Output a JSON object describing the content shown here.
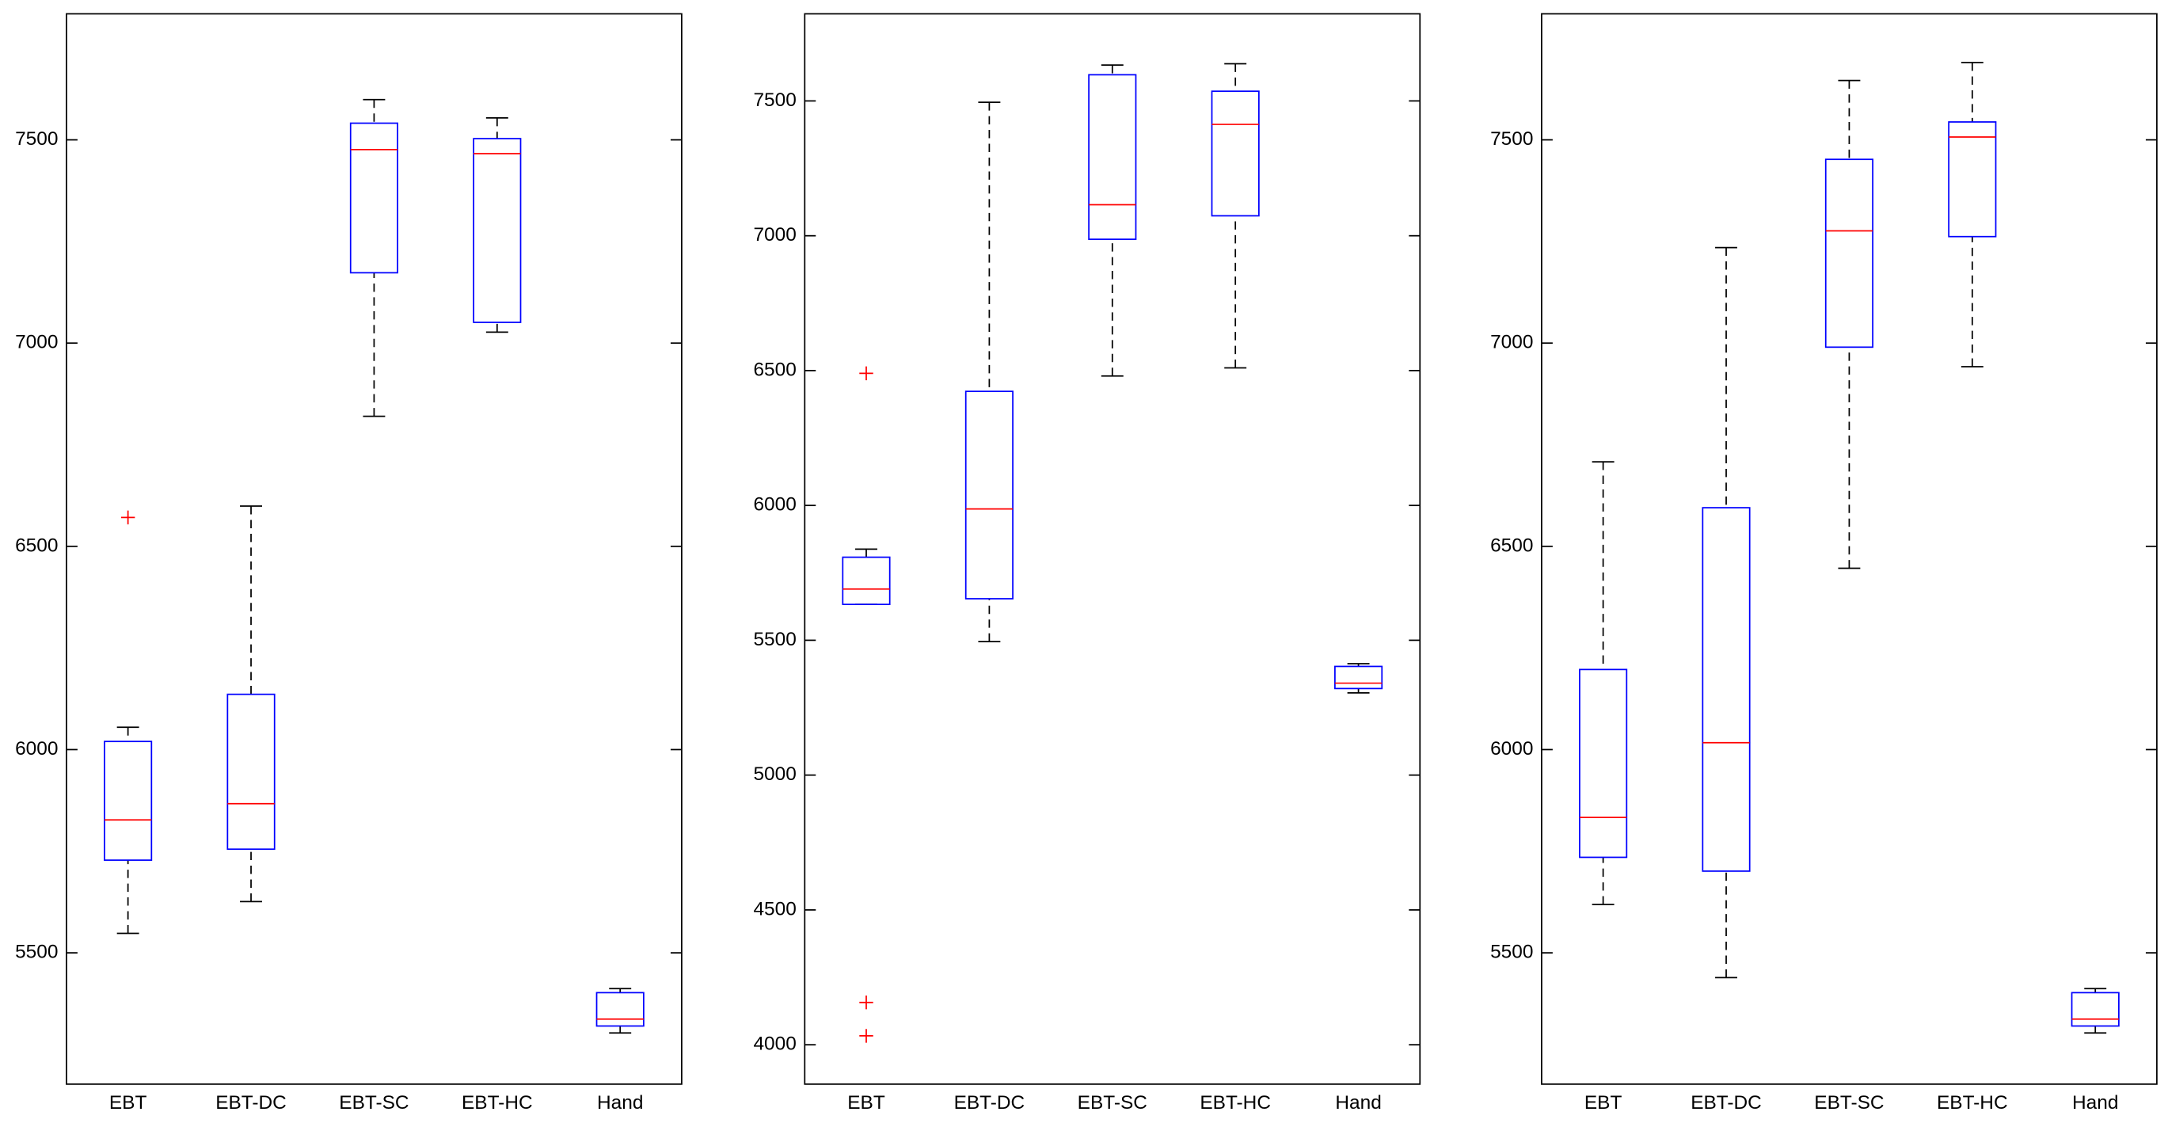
{
  "chart_data": [
    {
      "type": "box",
      "categories": [
        "EBT",
        "EBT-DC",
        "EBT-SC",
        "EBT-HC",
        "Hand"
      ],
      "ylim": [
        5177,
        7810
      ],
      "yticks": [
        5500,
        6000,
        6500,
        7000,
        7500
      ],
      "box_color": "#0000ff",
      "median_color": "#ff0000",
      "whisker_color": "#000000",
      "boxes": [
        {
          "whisker_low": 5548,
          "q1": 5728,
          "median": 5827,
          "q3": 6020,
          "whisker_high": 6055,
          "outliers": [
            6571
          ]
        },
        {
          "whisker_low": 5626,
          "q1": 5755,
          "median": 5867,
          "q3": 6136,
          "whisker_high": 6599,
          "outliers": []
        },
        {
          "whisker_low": 6820,
          "q1": 7173,
          "median": 7476,
          "q3": 7541,
          "whisker_high": 7599,
          "outliers": []
        },
        {
          "whisker_low": 7027,
          "q1": 7051,
          "median": 7466,
          "q3": 7503,
          "whisker_high": 7554,
          "outliers": []
        },
        {
          "whisker_low": 5303,
          "q1": 5320,
          "median": 5337,
          "q3": 5402,
          "whisker_high": 5412,
          "outliers": []
        }
      ]
    },
    {
      "type": "box",
      "categories": [
        "EBT",
        "EBT-DC",
        "EBT-SC",
        "EBT-HC",
        "Hand"
      ],
      "ylim": [
        3854,
        7823
      ],
      "yticks": [
        4000,
        4500,
        5000,
        5500,
        6000,
        6500,
        7000,
        7500
      ],
      "box_color": "#0000ff",
      "median_color": "#ff0000",
      "whisker_color": "#000000",
      "boxes": [
        {
          "whisker_low": 5633,
          "q1": 5633,
          "median": 5690,
          "q3": 5808,
          "whisker_high": 5838,
          "outliers": [
            6490,
            4157,
            4033
          ]
        },
        {
          "whisker_low": 5495,
          "q1": 5654,
          "median": 5987,
          "q3": 6423,
          "whisker_high": 7495,
          "outliers": []
        },
        {
          "whisker_low": 6480,
          "q1": 6987,
          "median": 7115,
          "q3": 7597,
          "whisker_high": 7633,
          "outliers": []
        },
        {
          "whisker_low": 6510,
          "q1": 7074,
          "median": 7413,
          "q3": 7536,
          "whisker_high": 7638,
          "outliers": []
        },
        {
          "whisker_low": 5305,
          "q1": 5321,
          "median": 5341,
          "q3": 5403,
          "whisker_high": 5413,
          "outliers": []
        }
      ]
    },
    {
      "type": "box",
      "categories": [
        "EBT",
        "EBT-DC",
        "EBT-SC",
        "EBT-HC",
        "Hand"
      ],
      "ylim": [
        5177,
        7810
      ],
      "yticks": [
        5500,
        6000,
        6500,
        7000,
        7500
      ],
      "box_color": "#0000ff",
      "median_color": "#ff0000",
      "whisker_color": "#000000",
      "boxes": [
        {
          "whisker_low": 5619,
          "q1": 5735,
          "median": 5833,
          "q3": 6197,
          "whisker_high": 6708,
          "outliers": []
        },
        {
          "whisker_low": 5439,
          "q1": 5701,
          "median": 6017,
          "q3": 6595,
          "whisker_high": 7235,
          "outliers": []
        },
        {
          "whisker_low": 6446,
          "q1": 6990,
          "median": 7276,
          "q3": 7452,
          "whisker_high": 7646,
          "outliers": []
        },
        {
          "whisker_low": 6942,
          "q1": 7262,
          "median": 7507,
          "q3": 7544,
          "whisker_high": 7690,
          "outliers": []
        },
        {
          "whisker_low": 5303,
          "q1": 5320,
          "median": 5337,
          "q3": 5402,
          "whisker_high": 5412,
          "outliers": []
        }
      ]
    }
  ]
}
